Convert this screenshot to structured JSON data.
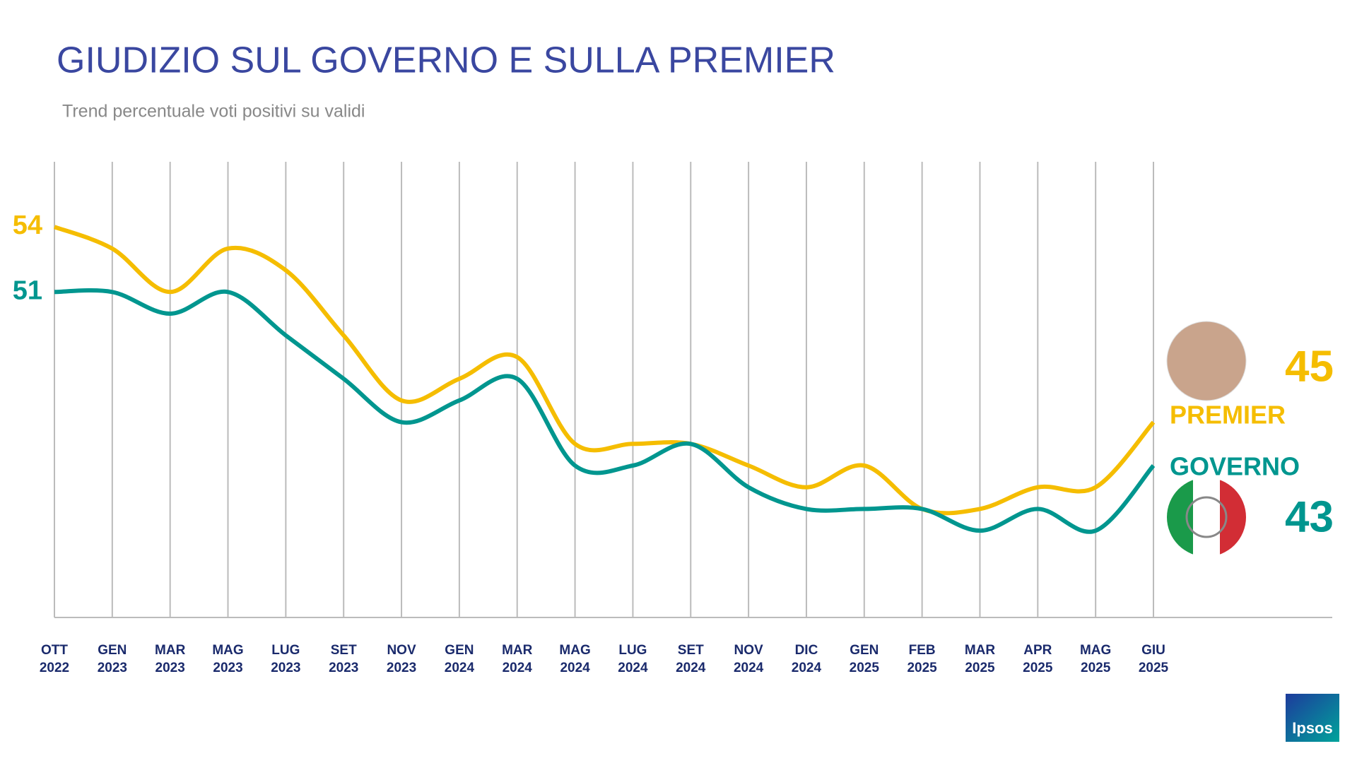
{
  "chart_data": {
    "type": "line",
    "title": "GIUDIZIO SUL GOVERNO E SULLA PREMIER",
    "subtitle": "Trend percentuale voti positivi su validi",
    "categories": [
      "OTT 2022",
      "GEN 2023",
      "MAR 2023",
      "MAG 2023",
      "LUG 2023",
      "SET 2023",
      "NOV 2023",
      "GEN 2024",
      "MAR 2024",
      "MAG 2024",
      "LUG 2024",
      "SET 2024",
      "NOV 2024",
      "DIC 2024",
      "GEN 2025",
      "FEB 2025",
      "MAR 2025",
      "APR 2025",
      "MAG 2025",
      "GIU 2025"
    ],
    "series": [
      {
        "name": "PREMIER",
        "color": "#f5bd00",
        "values": [
          54,
          53,
          51,
          53,
          52,
          49,
          46,
          47,
          48,
          44,
          44,
          44,
          43,
          42,
          43,
          41,
          41,
          42,
          42,
          45
        ]
      },
      {
        "name": "GOVERNO",
        "color": "#00968f",
        "values": [
          51,
          51,
          50,
          51,
          49,
          47,
          45,
          46,
          47,
          43,
          43,
          44,
          42,
          41,
          41,
          41,
          40,
          41,
          40,
          43
        ]
      }
    ],
    "ylim": [
      36,
      57
    ],
    "logo": "Ipsos"
  }
}
